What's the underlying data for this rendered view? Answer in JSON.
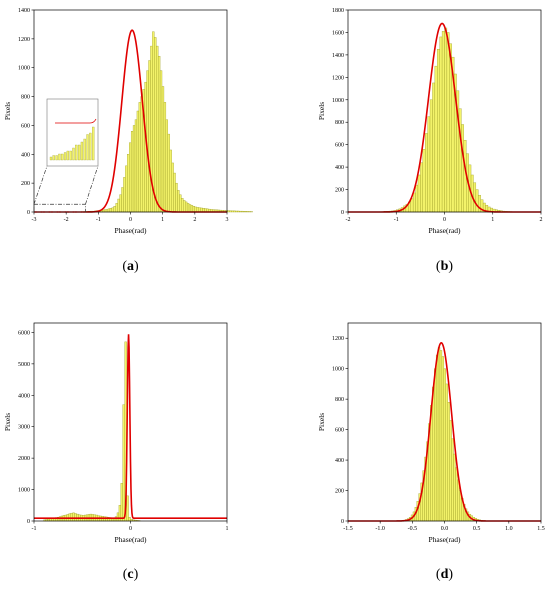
{
  "colors": {
    "bar_fill": "#f3f36a",
    "bar_stroke": "#9a9a22",
    "fit_curve": "#e00000",
    "zoom_line": "#333333"
  },
  "chart_data": [
    {
      "type": "bar",
      "panel_label": "a",
      "xlabel": "Phase(rad)",
      "ylabel": "Pixels",
      "xlim": [
        -3,
        3
      ],
      "ylim": [
        0,
        1400
      ],
      "xticks": [
        -3,
        -2,
        -1,
        0,
        1,
        2,
        3
      ],
      "yticks": [
        0,
        200,
        400,
        600,
        800,
        1000,
        1200,
        1400
      ],
      "xtick_labels": [
        "-3",
        "-2",
        "-1",
        "0",
        "1",
        "2",
        "3"
      ],
      "ytick_labels": [
        "0",
        "200",
        "400",
        "600",
        "800",
        "1000",
        "1200",
        "1400"
      ],
      "fit": {
        "type": "gaussian",
        "center": 0.05,
        "sigma": 0.32,
        "amplitude": 1260,
        "baseline": 0
      },
      "bins": {
        "start": -1.6,
        "width": 0.06,
        "counts": [
          2,
          3,
          3,
          4,
          4,
          5,
          6,
          6,
          8,
          10,
          10,
          12,
          14,
          17,
          18,
          22,
          26,
          30,
          40,
          60,
          90,
          120,
          170,
          240,
          320,
          400,
          480,
          560,
          600,
          640,
          700,
          760,
          800,
          850,
          900,
          980,
          1050,
          1150,
          1250,
          1210,
          1150,
          1080,
          980,
          870,
          760,
          640,
          540,
          430,
          340,
          270,
          200,
          150,
          120,
          95,
          80,
          70,
          60,
          52,
          46,
          40,
          35,
          32,
          30,
          28,
          26,
          24,
          22,
          20,
          18,
          17,
          16,
          15,
          14,
          13,
          12,
          11,
          10,
          10,
          9,
          8,
          8,
          7,
          7,
          6,
          6,
          5,
          5,
          4,
          4,
          3
        ]
      },
      "inset": {
        "present": true,
        "xrange": [
          -3,
          -1.4
        ],
        "yrange": [
          0,
          40
        ]
      }
    },
    {
      "type": "bar",
      "panel_label": "b",
      "xlabel": "Phase(rad)",
      "ylabel": "Pixels",
      "xlim": [
        -2,
        2
      ],
      "ylim": [
        0,
        1800
      ],
      "xticks": [
        -2,
        -1,
        0,
        1,
        2
      ],
      "yticks": [
        0,
        200,
        400,
        600,
        800,
        1000,
        1200,
        1400,
        1600,
        1800
      ],
      "xtick_labels": [
        "-2",
        "-1",
        "0",
        "1",
        "2"
      ],
      "ytick_labels": [
        "0",
        "200",
        "400",
        "600",
        "800",
        "1000",
        "1200",
        "1400",
        "1600",
        "1800"
      ],
      "fit": {
        "type": "gaussian",
        "center": -0.05,
        "sigma": 0.28,
        "amplitude": 1680,
        "baseline": 0
      },
      "bins": {
        "start": -1.4,
        "width": 0.05,
        "counts": [
          2,
          3,
          4,
          5,
          6,
          8,
          10,
          14,
          20,
          28,
          40,
          55,
          70,
          90,
          120,
          170,
          240,
          330,
          440,
          560,
          700,
          850,
          1000,
          1150,
          1300,
          1450,
          1560,
          1610,
          1640,
          1600,
          1500,
          1380,
          1230,
          1080,
          920,
          780,
          640,
          520,
          420,
          330,
          260,
          200,
          150,
          110,
          80,
          60,
          45,
          35,
          26,
          20,
          15,
          11,
          8,
          6,
          5,
          4
        ]
      }
    },
    {
      "type": "bar",
      "panel_label": "c",
      "xlabel": "Phase(rad)",
      "ylabel": "Pixels",
      "xlim": [
        -1,
        1
      ],
      "ylim": [
        0,
        6300
      ],
      "xticks": [
        -1,
        0,
        1
      ],
      "yticks": [
        0,
        1000,
        2000,
        3000,
        4000,
        5000,
        6000
      ],
      "xtick_labels": [
        "-1",
        "0",
        "1"
      ],
      "ytick_labels": [
        "0",
        "1000",
        "2000",
        "3000",
        "4000",
        "5000",
        "6000"
      ],
      "fit": {
        "type": "gaussian",
        "center": -0.02,
        "sigma": 0.013,
        "amplitude": 5850,
        "baseline": 90
      },
      "bins": {
        "start": -0.9,
        "width": 0.02,
        "counts": [
          40,
          50,
          60,
          70,
          80,
          100,
          110,
          120,
          140,
          160,
          180,
          190,
          210,
          230,
          250,
          260,
          240,
          220,
          200,
          190,
          180,
          190,
          200,
          210,
          220,
          210,
          200,
          190,
          170,
          160,
          150,
          140,
          130,
          120,
          110,
          100,
          90,
          140,
          260,
          500,
          1200,
          3700,
          5700,
          800,
          120,
          60,
          40,
          30,
          20,
          15
        ]
      }
    },
    {
      "type": "bar",
      "panel_label": "d",
      "xlabel": "Phase(rad)",
      "ylabel": "Pixels",
      "xlim": [
        -1.5,
        1.5
      ],
      "ylim": [
        0,
        1300
      ],
      "xticks": [
        -1.5,
        -1.0,
        -0.5,
        0.0,
        0.5,
        1.0,
        1.5
      ],
      "yticks": [
        0,
        200,
        400,
        600,
        800,
        1000,
        1200
      ],
      "xtick_labels": [
        "-1.5",
        "-1.0",
        "-0.5",
        "0.0",
        "0.5",
        "1.0",
        "1.5"
      ],
      "ytick_labels": [
        "0",
        "200",
        "400",
        "600",
        "800",
        "1000",
        "1200"
      ],
      "fit": {
        "type": "gaussian",
        "center": -0.05,
        "sigma": 0.16,
        "amplitude": 1170,
        "baseline": 0
      },
      "bins": {
        "start": -0.7,
        "width": 0.03,
        "counts": [
          2,
          4,
          6,
          10,
          16,
          25,
          40,
          60,
          90,
          130,
          180,
          250,
          330,
          420,
          520,
          640,
          760,
          880,
          1000,
          1090,
          1140,
          1120,
          1080,
          1000,
          900,
          780,
          660,
          540,
          440,
          350,
          270,
          200,
          150,
          110,
          80,
          60,
          45,
          35,
          25,
          18,
          12,
          8,
          5,
          3,
          2,
          1
        ]
      }
    }
  ]
}
